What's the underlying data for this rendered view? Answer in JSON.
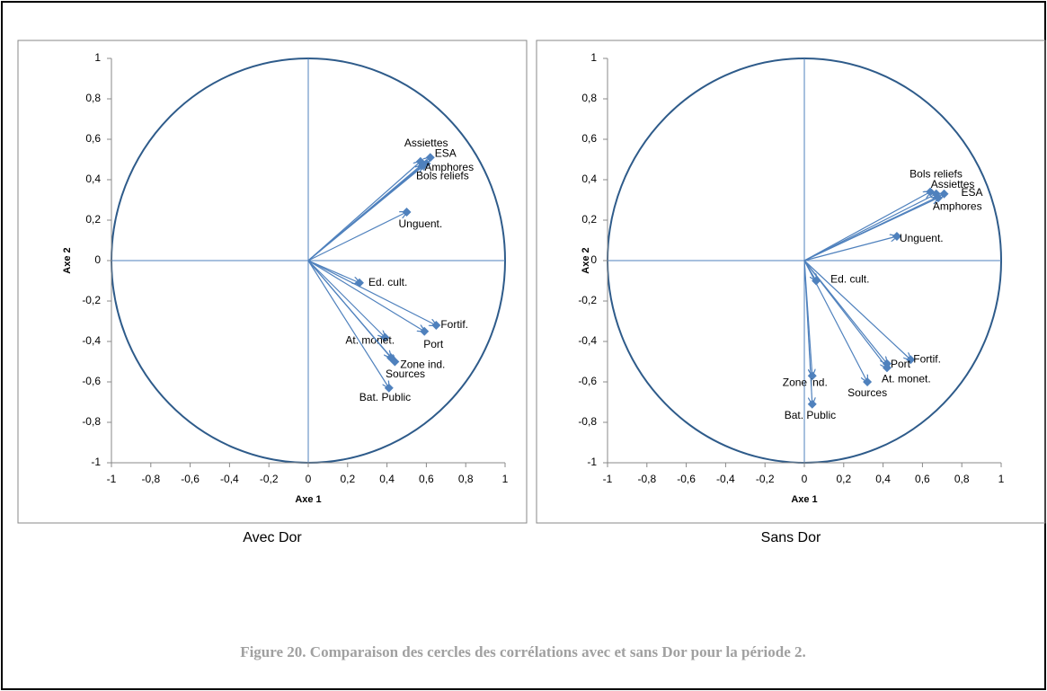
{
  "chart_data": [
    {
      "type": "scatter",
      "xlabel": "Axe 1",
      "ylabel": "Axe 2",
      "caption": "Avec Dor",
      "labels": [
        "Assiettes",
        "ESA",
        "Amphores",
        "Bols reliefs",
        "Unguent.",
        "Ed. cult.",
        "Fortif.",
        "Port",
        "At. monet.",
        "Zone ind.",
        "Sources",
        "Bat. Public"
      ],
      "x": [
        0.57,
        0.62,
        0.6,
        0.58,
        0.5,
        0.26,
        0.65,
        0.59,
        0.39,
        0.44,
        0.42,
        0.41
      ],
      "values": [
        0.49,
        0.51,
        0.48,
        0.47,
        0.24,
        -0.11,
        -0.32,
        -0.35,
        -0.38,
        -0.5,
        -0.48,
        -0.63
      ],
      "color": "#4f81bd",
      "xlim": [
        -1,
        1
      ],
      "ylim": [
        -1,
        1
      ],
      "xticks": [
        -1,
        {
          "value": -0.8,
          "label": "-0,8"
        },
        {
          "value": -0.6,
          "label": "-0,6"
        },
        {
          "value": -0.4,
          "label": "-0,4"
        },
        {
          "value": -0.2,
          "label": "-0,2"
        },
        0,
        {
          "value": 0.2,
          "label": "0,2"
        },
        {
          "value": 0.4,
          "label": "0,4"
        },
        {
          "value": 0.6,
          "label": "0,6"
        },
        {
          "value": 0.8,
          "label": "0,8"
        },
        1
      ],
      "yticks": [
        -1,
        {
          "value": -0.8,
          "label": "-0,8"
        },
        {
          "value": -0.6,
          "label": "-0,6"
        },
        {
          "value": -0.4,
          "label": "-0,4"
        },
        {
          "value": -0.2,
          "label": "-0,2"
        },
        0,
        {
          "value": 0.2,
          "label": "0,2"
        },
        {
          "value": 0.4,
          "label": "0,4"
        },
        {
          "value": 0.6,
          "label": "0,6"
        },
        {
          "value": 0.8,
          "label": "0,8"
        },
        1
      ]
    },
    {
      "type": "scatter",
      "xlabel": "Axe 1",
      "ylabel": "Axe 2",
      "caption": "Sans Dor",
      "labels": [
        "Bols reliefs",
        "Assiettes",
        "ESA",
        "Amphores",
        "Unguent.",
        "Ed. cult.",
        "Fortif.",
        "Port",
        "At. monet.",
        "Sources",
        "Zone ind.",
        "Bat. Public"
      ],
      "x": [
        0.64,
        0.67,
        0.71,
        0.68,
        0.47,
        0.06,
        0.54,
        0.42,
        0.42,
        0.32,
        0.04,
        0.04
      ],
      "values": [
        0.34,
        0.33,
        0.33,
        0.31,
        0.12,
        -0.1,
        -0.49,
        -0.51,
        -0.53,
        -0.6,
        -0.57,
        -0.71
      ],
      "color": "#4f81bd",
      "xlim": [
        -1,
        1
      ],
      "ylim": [
        -1,
        1
      ],
      "xticks": [
        -1,
        {
          "value": -0.8,
          "label": "-0,8"
        },
        {
          "value": -0.6,
          "label": "-0,6"
        },
        {
          "value": -0.4,
          "label": "-0,4"
        },
        {
          "value": -0.2,
          "label": "-0,2"
        },
        0,
        {
          "value": 0.2,
          "label": "0,2"
        },
        {
          "value": 0.4,
          "label": "0,4"
        },
        {
          "value": 0.6,
          "label": "0,6"
        },
        {
          "value": 0.8,
          "label": "0,8"
        },
        1
      ],
      "yticks": [
        -1,
        {
          "value": -0.8,
          "label": "-0,8"
        },
        {
          "value": -0.6,
          "label": "-0,6"
        },
        {
          "value": -0.4,
          "label": "-0,4"
        },
        {
          "value": -0.2,
          "label": "-0,2"
        },
        0,
        {
          "value": 0.2,
          "label": "0,2"
        },
        {
          "value": 0.4,
          "label": "0,4"
        },
        {
          "value": 0.6,
          "label": "0,6"
        },
        {
          "value": 0.8,
          "label": "0,8"
        },
        1
      ]
    }
  ],
  "figure_caption": "Figure 20. Comparaison des cercles des corrélations avec et sans Dor pour la période 2."
}
